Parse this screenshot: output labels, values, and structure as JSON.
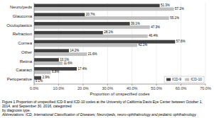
{
  "chart_data": {
    "type": "bar",
    "orientation": "horizontal",
    "categories": [
      "Perioperative",
      "Cataract",
      "Retina",
      "Other",
      "Cornea",
      "Refraction",
      "Oculoplastics",
      "Glaucoma",
      "Neuro/peds"
    ],
    "series": [
      {
        "name": "ICD-9",
        "color": "#404040",
        "values": [
          2.9,
          17.4,
          10.1,
          14.2,
          57.6,
          28.1,
          39.1,
          20.7,
          51.3
        ],
        "value_labels": [
          "2.9%",
          "17.4%",
          "10.1%",
          "14.2%",
          "57.6%",
          "28.1%",
          "39.1%",
          "20.7%",
          "51.3%"
        ]
      },
      {
        "name": "ICD-10",
        "color": "#c0c0c0",
        "values": [
          0.1,
          6.8,
          11.6,
          21.6,
          42.1,
          46.4,
          47.3,
          55.1,
          57.1
        ],
        "value_labels": [
          "0.1%",
          "6.8%",
          "11.6%",
          "21.6%",
          "42.1%",
          "46.4%",
          "47.3%",
          "55.1%",
          "57.1%"
        ]
      }
    ],
    "xlabel": "Proportion of unspecified codes",
    "xlim": [
      0,
      70
    ],
    "xticks": [
      {
        "value": 0,
        "label": "0.0%"
      },
      {
        "value": 10,
        "label": "10.0%"
      },
      {
        "value": 20,
        "label": "20.0%"
      },
      {
        "value": 30,
        "label": "30.0%"
      },
      {
        "value": 40,
        "label": "40.0%"
      },
      {
        "value": 50,
        "label": "50.0%"
      },
      {
        "value": 60,
        "label": "60.0%"
      },
      {
        "value": 70,
        "label": "70.0%"
      }
    ],
    "grid": true,
    "legend": "lower right",
    "data_labels": true,
    "annotations": [
      "Figure 1 Proportion of unspecified ICD-9 and ICD-10 codes at the University of California Davis Eye Center between October 1, 2014, and September 30, 2016, categorized",
      "by diagnosis type.",
      "Abbreviations: ICD, International Classification of Diseases; Neuro/peds, neuro-ophthalmology and pediatric ophthalmology."
    ]
  }
}
